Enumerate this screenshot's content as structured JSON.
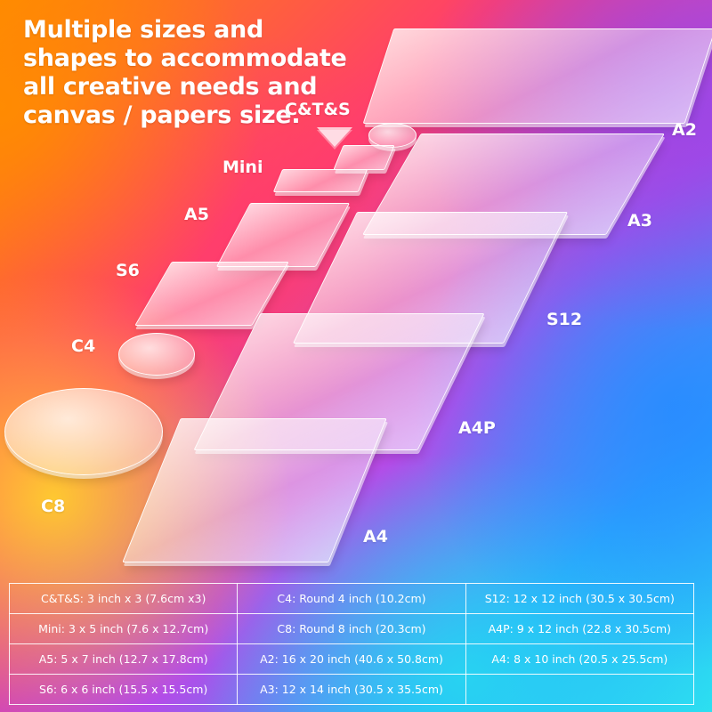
{
  "headline": "Multiple sizes and shapes to accommodate all creative needs and canvas / papers size.",
  "labels": {
    "cts": "C&T&S",
    "a2": "A2",
    "mini": "Mini",
    "a3": "A3",
    "a5": "A5",
    "s6": "S6",
    "s12": "S12",
    "c4": "C4",
    "a4p": "A4P",
    "c8": "C8",
    "a4": "A4"
  },
  "table": {
    "rows": [
      [
        "C&T&S: 3 inch x 3 (7.6cm x3)",
        "C4: Round 4 inch (10.2cm)",
        "S12: 12 x 12 inch (30.5 x 30.5cm)"
      ],
      [
        "Mini: 3 x 5 inch (7.6 x 12.7cm)",
        "C8: Round 8 inch (20.3cm)",
        "A4P: 9 x 12 inch (22.8 x 30.5cm)"
      ],
      [
        "A5: 5 x 7 inch (12.7 x 17.8cm)",
        "A2: 16 x 20 inch (40.6 x 50.8cm)",
        "A4: 8 x 10 inch (20.5 x 25.5cm)"
      ],
      [
        "S6: 6 x 6 inch (15.5 x 15.5cm)",
        "A3: 12 x 14 inch (30.5 x 35.5cm)",
        ""
      ]
    ]
  },
  "colors": {
    "text": "#ffffff",
    "orange": "#ff8a00",
    "pink": "#ff3d6e",
    "purple": "#b44be8",
    "blue": "#2aa8ff",
    "cyan": "#2de0f0",
    "yellow": "#ffd728"
  }
}
